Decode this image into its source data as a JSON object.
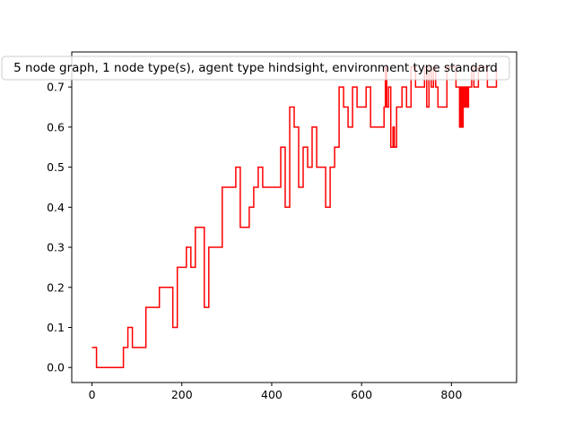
{
  "chart_data": {
    "type": "line",
    "title": "5 node graph, 1 node type(s), agent type hindsight, environment type standard",
    "xlabel": "",
    "ylabel": "",
    "xlim": [
      -45,
      945
    ],
    "ylim": [
      -0.0375,
      0.7875
    ],
    "xticks": [
      0,
      200,
      400,
      600,
      800
    ],
    "yticks": [
      0.0,
      0.1,
      0.2,
      0.3,
      0.4,
      0.5,
      0.6,
      0.7
    ],
    "xtick_labels": [
      "0",
      "200",
      "400",
      "600",
      "800"
    ],
    "ytick_labels": [
      "0.0",
      "0.1",
      "0.2",
      "0.3",
      "0.4",
      "0.5",
      "0.6",
      "0.7"
    ],
    "grid": false,
    "legend": "none",
    "series": [
      {
        "color": "#ff0000",
        "step": true,
        "points": [
          [
            0,
            0.05
          ],
          [
            10,
            0.0
          ],
          [
            70,
            0.05
          ],
          [
            80,
            0.1
          ],
          [
            90,
            0.05
          ],
          [
            120,
            0.15
          ],
          [
            150,
            0.2
          ],
          [
            180,
            0.1
          ],
          [
            190,
            0.25
          ],
          [
            210,
            0.3
          ],
          [
            220,
            0.25
          ],
          [
            230,
            0.35
          ],
          [
            250,
            0.15
          ],
          [
            260,
            0.3
          ],
          [
            290,
            0.45
          ],
          [
            320,
            0.5
          ],
          [
            330,
            0.35
          ],
          [
            350,
            0.4
          ],
          [
            360,
            0.45
          ],
          [
            370,
            0.5
          ],
          [
            380,
            0.45
          ],
          [
            420,
            0.55
          ],
          [
            430,
            0.4
          ],
          [
            440,
            0.65
          ],
          [
            450,
            0.6
          ],
          [
            460,
            0.45
          ],
          [
            470,
            0.55
          ],
          [
            480,
            0.5
          ],
          [
            490,
            0.6
          ],
          [
            500,
            0.5
          ],
          [
            520,
            0.4
          ],
          [
            530,
            0.5
          ],
          [
            540,
            0.55
          ],
          [
            550,
            0.7
          ],
          [
            560,
            0.65
          ],
          [
            570,
            0.6
          ],
          [
            580,
            0.7
          ],
          [
            590,
            0.65
          ],
          [
            610,
            0.7
          ],
          [
            620,
            0.6
          ],
          [
            650,
            0.65
          ],
          [
            653,
            0.75
          ],
          [
            656,
            0.65
          ],
          [
            660,
            0.7
          ],
          [
            665,
            0.55
          ],
          [
            670,
            0.6
          ],
          [
            673,
            0.55
          ],
          [
            678,
            0.65
          ],
          [
            690,
            0.7
          ],
          [
            700,
            0.65
          ],
          [
            710,
            0.75
          ],
          [
            720,
            0.7
          ],
          [
            740,
            0.75
          ],
          [
            745,
            0.65
          ],
          [
            750,
            0.75
          ],
          [
            755,
            0.7
          ],
          [
            760,
            0.75
          ],
          [
            765,
            0.7
          ],
          [
            770,
            0.65
          ],
          [
            790,
            0.75
          ],
          [
            810,
            0.7
          ],
          [
            818,
            0.6
          ],
          [
            820,
            0.7
          ],
          [
            823,
            0.6
          ],
          [
            826,
            0.7
          ],
          [
            829,
            0.65
          ],
          [
            832,
            0.7
          ],
          [
            835,
            0.65
          ],
          [
            838,
            0.7
          ],
          [
            845,
            0.75
          ],
          [
            850,
            0.7
          ],
          [
            860,
            0.75
          ],
          [
            870,
            0.75
          ],
          [
            880,
            0.7
          ],
          [
            900,
            0.75
          ]
        ]
      }
    ]
  }
}
